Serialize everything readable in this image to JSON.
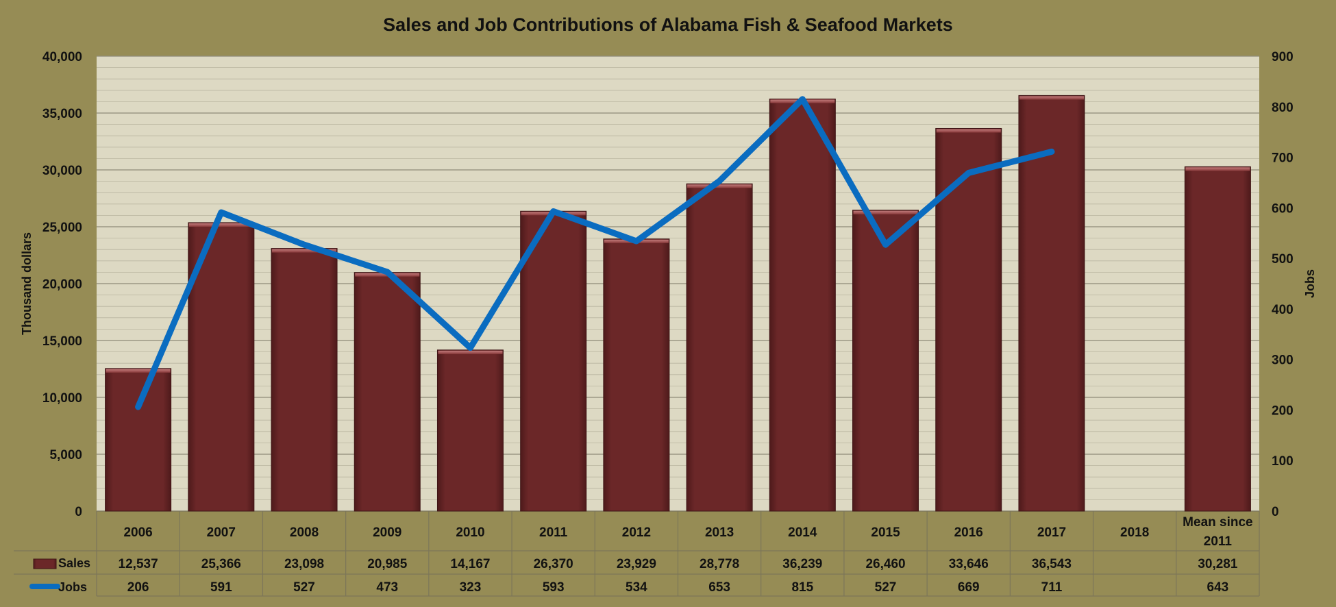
{
  "chart_data": {
    "type": "bar",
    "title": "Sales and Job Contributions of Alabama Fish & Seafood Markets",
    "categories": [
      "2006",
      "2007",
      "2008",
      "2009",
      "2010",
      "2011",
      "2012",
      "2013",
      "2014",
      "2015",
      "2016",
      "2017",
      "2018",
      "Mean since 2011"
    ],
    "ylabel": "Thousand dollars",
    "y2label": "Jobs",
    "ylim": [
      0,
      40000
    ],
    "y2lim": [
      0,
      900
    ],
    "yticks": [
      "0",
      "5,000",
      "10,000",
      "15,000",
      "20,000",
      "25,000",
      "30,000",
      "35,000",
      "40,000"
    ],
    "y2ticks": [
      "0",
      "100",
      "200",
      "300",
      "400",
      "500",
      "600",
      "700",
      "800",
      "900"
    ],
    "grid": true,
    "legend_placement": "data-table",
    "series": [
      {
        "name": "Sales",
        "type": "bar",
        "axis": "left",
        "color": "#6b2728",
        "values": [
          12537,
          25366,
          23098,
          20985,
          14167,
          26370,
          23929,
          28778,
          36239,
          26460,
          33646,
          36543,
          null,
          30281
        ],
        "labels": [
          "12,537",
          "25,366",
          "23,098",
          "20,985",
          "14,167",
          "26,370",
          "23,929",
          "28,778",
          "36,239",
          "26,460",
          "33,646",
          "36,543",
          "",
          "30,281"
        ]
      },
      {
        "name": "Jobs",
        "type": "line",
        "axis": "right",
        "color": "#0a6cc0",
        "values": [
          206,
          591,
          527,
          473,
          323,
          593,
          534,
          653,
          815,
          527,
          669,
          711,
          null,
          643
        ],
        "labels": [
          "206",
          "591",
          "527",
          "473",
          "323",
          "593",
          "534",
          "653",
          "815",
          "527",
          "669",
          "711",
          "",
          "643"
        ],
        "plotted_points": 12
      }
    ]
  }
}
